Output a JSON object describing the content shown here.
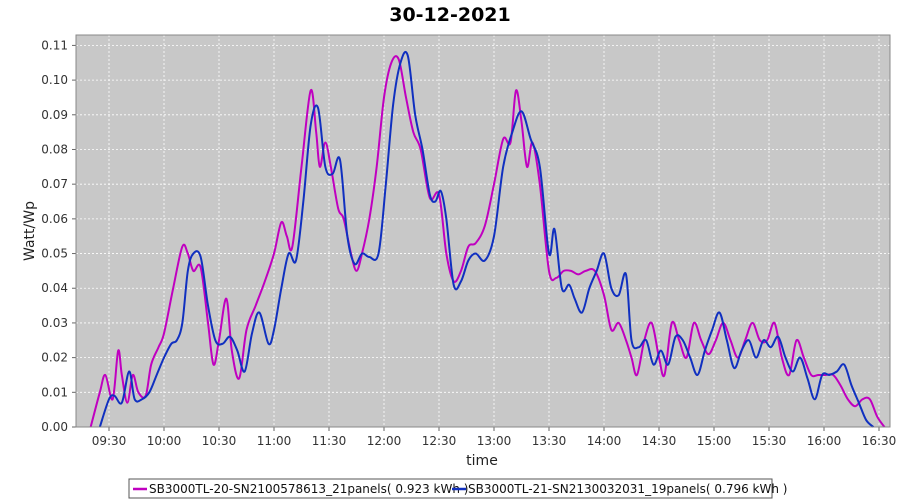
{
  "chart_data": {
    "type": "line",
    "title": "30-12-2021",
    "xlabel": "time",
    "ylabel": "Watt/Wp",
    "ylim": [
      0,
      0.113
    ],
    "yticks": [
      "0.00",
      "0.01",
      "0.02",
      "0.03",
      "0.04",
      "0.05",
      "0.06",
      "0.07",
      "0.08",
      "0.09",
      "0.10",
      "0.11"
    ],
    "xlim": [
      "09:12",
      "16:36"
    ],
    "xticks": [
      "09:30",
      "10:00",
      "10:30",
      "11:00",
      "11:30",
      "12:00",
      "12:30",
      "13:00",
      "13:30",
      "14:00",
      "14:30",
      "15:00",
      "15:30",
      "16:00",
      "16:30"
    ],
    "grid": true,
    "legend_position": "bottom",
    "colors": {
      "plot_bg": "#c8c8c8",
      "grid": "#ffffff",
      "border": "#888888"
    },
    "series": [
      {
        "name": "SB3000TL-20-SN2100578613_21panels( 0.923 kWh )",
        "color": "#c000c0",
        "x": [
          "09:20",
          "09:25",
          "09:28",
          "09:32",
          "09:35",
          "09:37",
          "09:40",
          "09:43",
          "09:46",
          "09:50",
          "09:53",
          "09:57",
          "10:00",
          "10:05",
          "10:10",
          "10:13",
          "10:16",
          "10:20",
          "10:24",
          "10:27",
          "10:30",
          "10:34",
          "10:37",
          "10:41",
          "10:45",
          "10:50",
          "10:55",
          "11:00",
          "11:04",
          "11:07",
          "11:10",
          "11:15",
          "11:20",
          "11:23",
          "11:25",
          "11:28",
          "11:31",
          "11:35",
          "11:38",
          "11:42",
          "11:45",
          "11:48",
          "11:52",
          "11:56",
          "12:00",
          "12:04",
          "12:08",
          "12:12",
          "12:16",
          "12:20",
          "12:25",
          "12:30",
          "12:34",
          "12:38",
          "12:42",
          "12:46",
          "12:50",
          "12:55",
          "13:00",
          "13:05",
          "13:09",
          "13:12",
          "13:15",
          "13:18",
          "13:21",
          "13:25",
          "13:30",
          "13:34",
          "13:38",
          "13:42",
          "13:46",
          "13:50",
          "13:55",
          "14:00",
          "14:04",
          "14:08",
          "14:12",
          "14:15",
          "14:18",
          "14:22",
          "14:26",
          "14:30",
          "14:33",
          "14:37",
          "14:41",
          "14:45",
          "14:49",
          "14:53",
          "14:57",
          "15:01",
          "15:05",
          "15:09",
          "15:13",
          "15:17",
          "15:21",
          "15:25",
          "15:29",
          "15:33",
          "15:37",
          "15:41",
          "15:45",
          "15:49",
          "15:53",
          "15:57",
          "16:01",
          "16:05",
          "16:09",
          "16:13",
          "16:17",
          "16:21",
          "16:25",
          "16:29",
          "16:33"
        ],
        "values": [
          0.0,
          0.01,
          0.015,
          0.008,
          0.022,
          0.015,
          0.007,
          0.015,
          0.01,
          0.009,
          0.018,
          0.023,
          0.027,
          0.04,
          0.052,
          0.05,
          0.045,
          0.046,
          0.03,
          0.018,
          0.025,
          0.037,
          0.022,
          0.014,
          0.028,
          0.035,
          0.042,
          0.05,
          0.059,
          0.055,
          0.052,
          0.075,
          0.097,
          0.085,
          0.075,
          0.082,
          0.075,
          0.063,
          0.06,
          0.05,
          0.045,
          0.05,
          0.06,
          0.075,
          0.095,
          0.105,
          0.106,
          0.095,
          0.085,
          0.08,
          0.066,
          0.067,
          0.05,
          0.042,
          0.045,
          0.052,
          0.053,
          0.058,
          0.07,
          0.083,
          0.082,
          0.097,
          0.088,
          0.075,
          0.082,
          0.07,
          0.045,
          0.043,
          0.045,
          0.045,
          0.044,
          0.045,
          0.045,
          0.038,
          0.028,
          0.03,
          0.025,
          0.02,
          0.015,
          0.025,
          0.03,
          0.02,
          0.015,
          0.03,
          0.025,
          0.02,
          0.03,
          0.025,
          0.021,
          0.025,
          0.03,
          0.025,
          0.02,
          0.025,
          0.03,
          0.025,
          0.025,
          0.03,
          0.02,
          0.015,
          0.025,
          0.02,
          0.015,
          0.015,
          0.015,
          0.015,
          0.012,
          0.008,
          0.006,
          0.008,
          0.008,
          0.003,
          0.0
        ]
      },
      {
        "name": "SB3000TL-21-SN2130032031_19panels( 0.796 kWh )",
        "color": "#1030c0",
        "x": [
          "09:25",
          "09:30",
          "09:33",
          "09:37",
          "09:41",
          "09:44",
          "09:48",
          "09:52",
          "09:56",
          "10:00",
          "10:04",
          "10:07",
          "10:10",
          "10:13",
          "10:16",
          "10:20",
          "10:24",
          "10:28",
          "10:32",
          "10:36",
          "10:40",
          "10:44",
          "10:48",
          "10:52",
          "10:57",
          "11:00",
          "11:04",
          "11:08",
          "11:12",
          "11:16",
          "11:20",
          "11:24",
          "11:28",
          "11:32",
          "11:36",
          "11:40",
          "11:44",
          "11:48",
          "11:52",
          "11:57",
          "12:01",
          "12:05",
          "12:09",
          "12:13",
          "12:17",
          "12:21",
          "12:25",
          "12:28",
          "12:31",
          "12:34",
          "12:38",
          "12:42",
          "12:46",
          "12:50",
          "12:55",
          "13:00",
          "13:05",
          "13:10",
          "13:15",
          "13:20",
          "13:25",
          "13:30",
          "13:33",
          "13:37",
          "13:41",
          "13:44",
          "13:48",
          "13:52",
          "13:56",
          "14:00",
          "14:04",
          "14:08",
          "14:12",
          "14:15",
          "14:19",
          "14:23",
          "14:27",
          "14:31",
          "14:35",
          "14:39",
          "14:43",
          "14:47",
          "14:51",
          "14:55",
          "14:59",
          "15:03",
          "15:07",
          "15:11",
          "15:15",
          "15:19",
          "15:23",
          "15:27",
          "15:31",
          "15:35",
          "15:39",
          "15:43",
          "15:47",
          "15:51",
          "15:55",
          "15:59",
          "16:03",
          "16:07",
          "16:11",
          "16:15",
          "16:19",
          "16:23",
          "16:27"
        ],
        "values": [
          0.0,
          0.008,
          0.009,
          0.007,
          0.016,
          0.008,
          0.008,
          0.01,
          0.015,
          0.02,
          0.024,
          0.025,
          0.03,
          0.045,
          0.05,
          0.049,
          0.035,
          0.025,
          0.024,
          0.026,
          0.022,
          0.016,
          0.027,
          0.033,
          0.024,
          0.028,
          0.04,
          0.05,
          0.048,
          0.065,
          0.087,
          0.092,
          0.075,
          0.073,
          0.077,
          0.055,
          0.047,
          0.05,
          0.049,
          0.05,
          0.07,
          0.093,
          0.105,
          0.107,
          0.09,
          0.08,
          0.067,
          0.065,
          0.068,
          0.06,
          0.041,
          0.042,
          0.048,
          0.05,
          0.048,
          0.055,
          0.075,
          0.085,
          0.091,
          0.083,
          0.075,
          0.05,
          0.057,
          0.04,
          0.041,
          0.037,
          0.033,
          0.04,
          0.045,
          0.05,
          0.04,
          0.038,
          0.044,
          0.025,
          0.023,
          0.025,
          0.018,
          0.022,
          0.018,
          0.026,
          0.025,
          0.02,
          0.015,
          0.022,
          0.028,
          0.033,
          0.025,
          0.017,
          0.022,
          0.025,
          0.02,
          0.025,
          0.023,
          0.026,
          0.02,
          0.016,
          0.02,
          0.014,
          0.008,
          0.015,
          0.015,
          0.016,
          0.018,
          0.012,
          0.007,
          0.002,
          0.0
        ]
      }
    ]
  }
}
